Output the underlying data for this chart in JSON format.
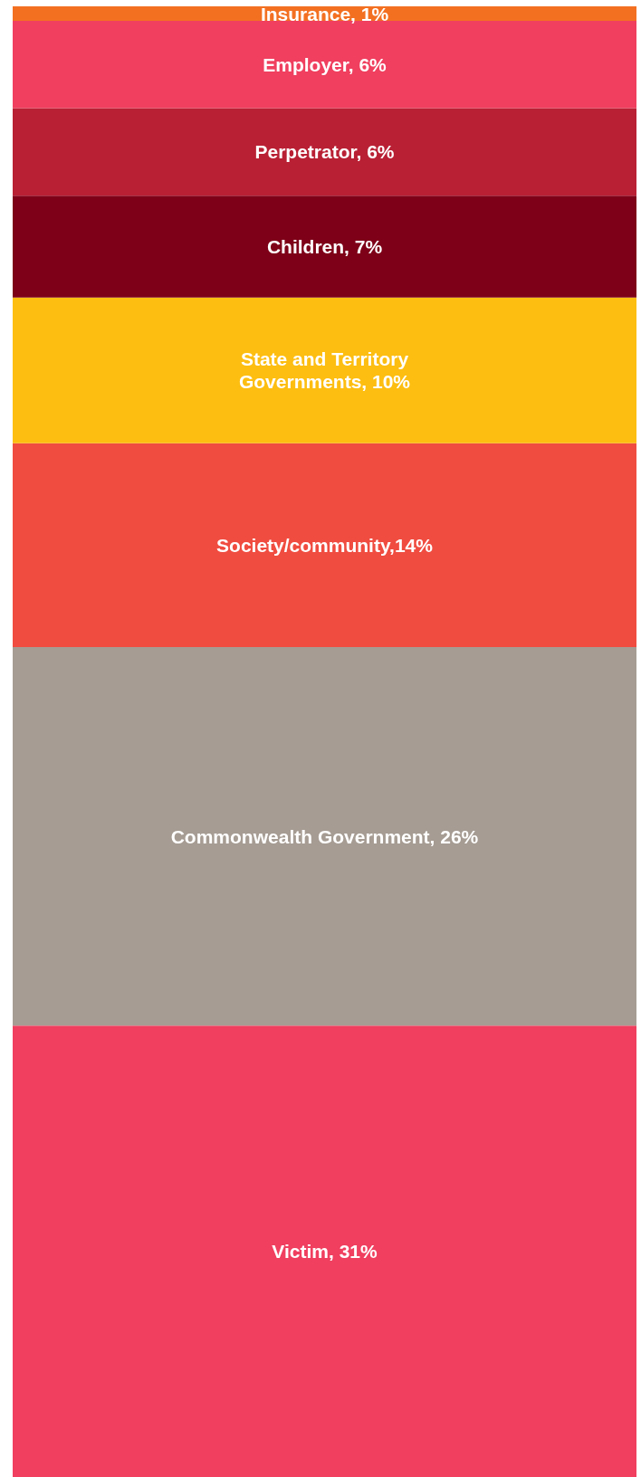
{
  "chart_data": {
    "type": "bar",
    "stacked": true,
    "categories": [
      null
    ],
    "legend": false,
    "grid": false,
    "series": [
      {
        "color": "#f03f5f",
        "values": [
          31
        ],
        "value_labels": [
          "Victim, 31%"
        ]
      },
      {
        "color": "#a69c93",
        "values": [
          26
        ],
        "value_labels": [
          "Commonwealth Government, 26%"
        ]
      },
      {
        "color": "#f04c40",
        "values": [
          14
        ],
        "value_labels": [
          "Society/community,14%"
        ]
      },
      {
        "color": "#fdbe11",
        "values": [
          10
        ],
        "value_labels": [
          "State and Territory\nGovernments, 10%"
        ]
      },
      {
        "color": "#7e0018",
        "values": [
          7
        ],
        "value_labels": [
          "Children, 7%"
        ]
      },
      {
        "color": "#b92034",
        "values": [
          6
        ],
        "value_labels": [
          "Perpetrator, 6%"
        ]
      },
      {
        "color": "#f03f5f",
        "values": [
          6
        ],
        "value_labels": [
          "Employer, 6%"
        ]
      },
      {
        "color": "#f37021",
        "values": [
          1
        ],
        "value_labels": [
          "Insurance, 1%"
        ]
      }
    ]
  }
}
